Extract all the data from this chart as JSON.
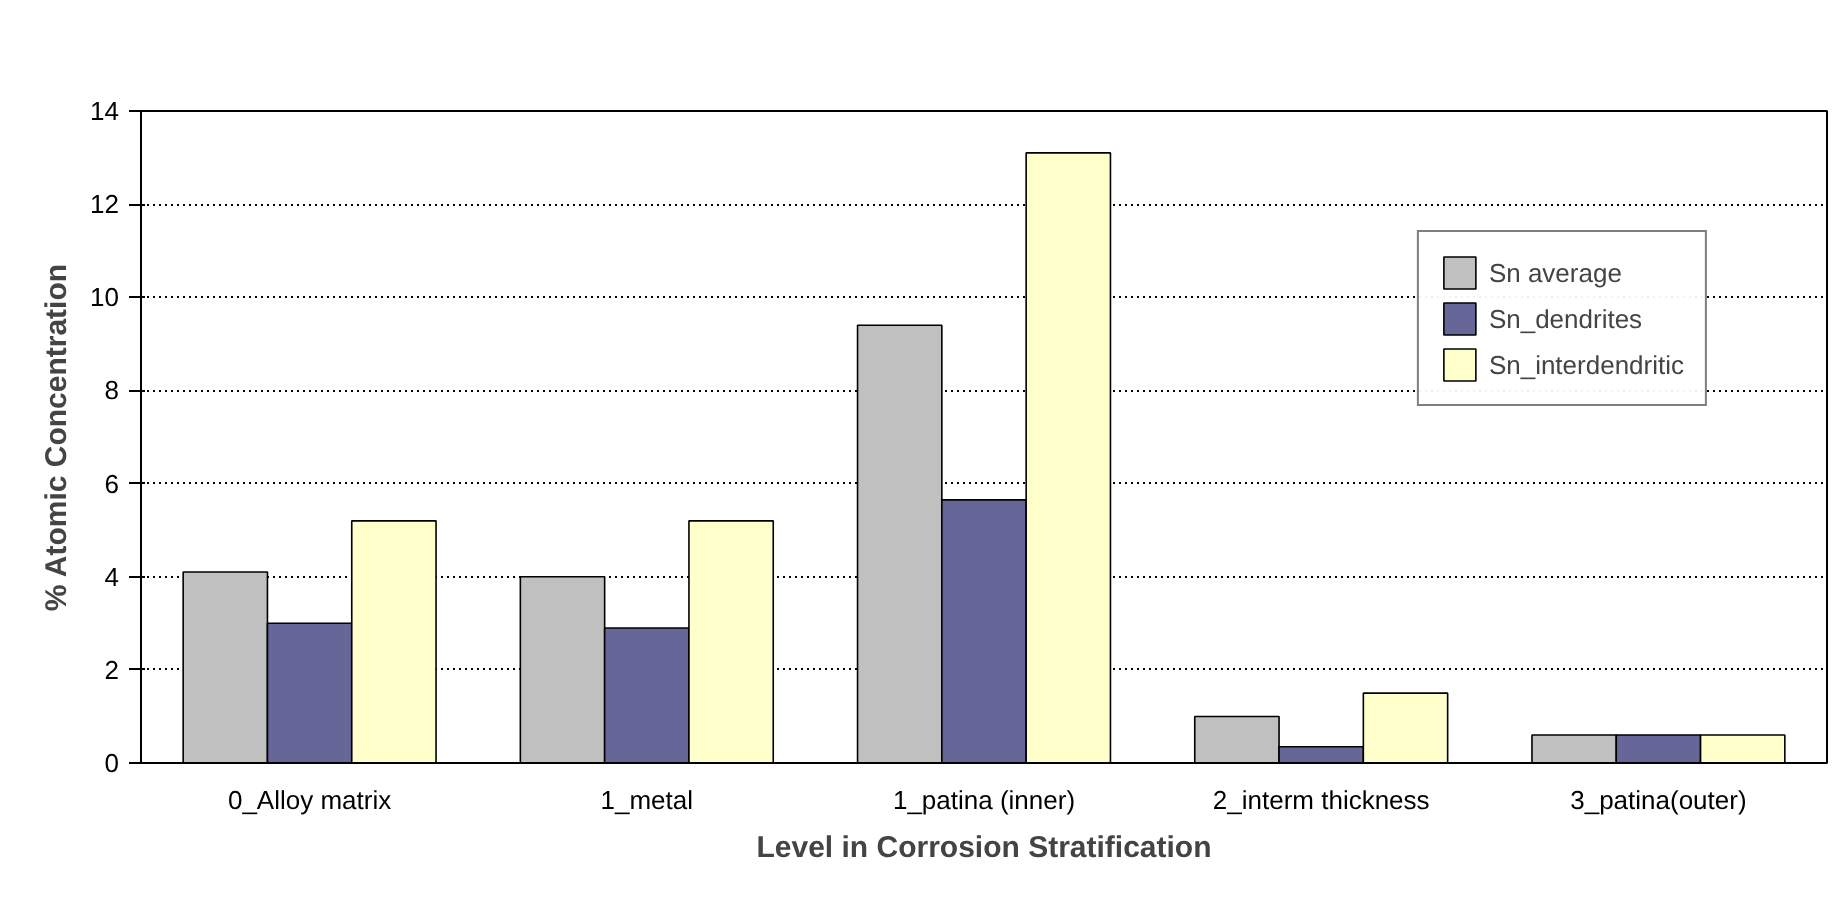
{
  "chart_data": {
    "type": "bar",
    "xlabel": "Level in Corrosion Stratification",
    "ylabel": "% Atomic Concentration",
    "categories": [
      "0_Alloy matrix",
      "1_metal",
      "1_patina (inner)",
      "2_interm thickness",
      "3_patina(outer)"
    ],
    "series": [
      {
        "name": "Sn average",
        "color": "#c0c0c0",
        "values": [
          4.1,
          4.0,
          9.4,
          1.0,
          0.6
        ]
      },
      {
        "name": "Sn_dendrites",
        "color": "#666699",
        "values": [
          3.0,
          2.9,
          5.65,
          0.35,
          0.6
        ]
      },
      {
        "name": "Sn_interdendritic",
        "color": "#ffffcc",
        "values": [
          5.2,
          5.2,
          13.1,
          1.5,
          0.6
        ]
      }
    ],
    "ylim": [
      0,
      14
    ],
    "yticks": [
      0,
      2,
      4,
      6,
      8,
      10,
      12,
      14
    ],
    "grid": "y",
    "legend": "top right"
  }
}
